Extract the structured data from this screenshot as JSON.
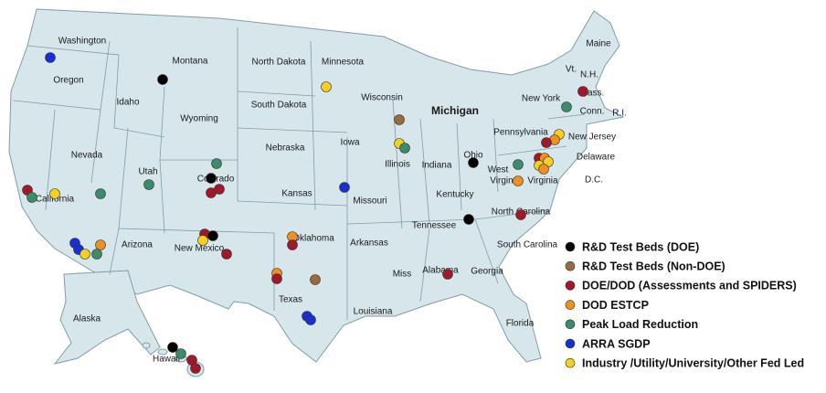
{
  "map": {
    "states": [
      {
        "label": "Washington"
      },
      {
        "label": "Oregon"
      },
      {
        "label": "Idaho"
      },
      {
        "label": "Montana"
      },
      {
        "label": "Wyoming"
      },
      {
        "label": "North Dakota"
      },
      {
        "label": "South Dakota"
      },
      {
        "label": "Minnesota"
      },
      {
        "label": "Wisconsin"
      },
      {
        "label": "Michigan"
      },
      {
        "label": "Nevada"
      },
      {
        "label": "Utah"
      },
      {
        "label": "Colorado"
      },
      {
        "label": "Nebraska"
      },
      {
        "label": "Iowa"
      },
      {
        "label": "Illinois"
      },
      {
        "label": "Indiana"
      },
      {
        "label": "Ohio"
      },
      {
        "label": "Pennsylvania"
      },
      {
        "label": "New York"
      },
      {
        "label": "Maine"
      },
      {
        "label": "Vt."
      },
      {
        "label": "N.H."
      },
      {
        "label": "Mass."
      },
      {
        "label": "Conn."
      },
      {
        "label": "R.I."
      },
      {
        "label": "New Jersey"
      },
      {
        "label": "Delaware"
      },
      {
        "label": "D.C."
      },
      {
        "label": "West"
      },
      {
        "label": "Virgin"
      },
      {
        "label": "Virginia"
      },
      {
        "label": "Kansas"
      },
      {
        "label": "Missouri"
      },
      {
        "label": "Kentucky"
      },
      {
        "label": "Tennessee"
      },
      {
        "label": "North Carolina"
      },
      {
        "label": "California"
      },
      {
        "label": "Arizona"
      },
      {
        "label": "New Mexico"
      },
      {
        "label": "Oklahoma"
      },
      {
        "label": "Arkansas"
      },
      {
        "label": "South Carolina"
      },
      {
        "label": "Georgia"
      },
      {
        "label": "Alabama"
      },
      {
        "label": "Miss"
      },
      {
        "label": "Texas"
      },
      {
        "label": "Louisiana"
      },
      {
        "label": "Florida"
      },
      {
        "label": "Alaska"
      },
      {
        "label": "Hawaii"
      }
    ],
    "legend": [
      {
        "label": "R&D Test Beds (DOE)",
        "color": "#000000"
      },
      {
        "label": "R&D Test Beds (Non-DOE)",
        "color": "#9b6a3c"
      },
      {
        "label": "DOE/DOD  (Assessments and SPIDERS)",
        "color": "#a0182a"
      },
      {
        "label": "DOD ESTCP",
        "color": "#f0901e"
      },
      {
        "label": "Peak Load Reduction",
        "color": "#3a8c6a"
      },
      {
        "label": "ARRA SGDP",
        "color": "#1a2fd0"
      },
      {
        "label": "Industry /Utility/University/Other Fed Led",
        "color": "#f5d020"
      }
    ]
  }
}
